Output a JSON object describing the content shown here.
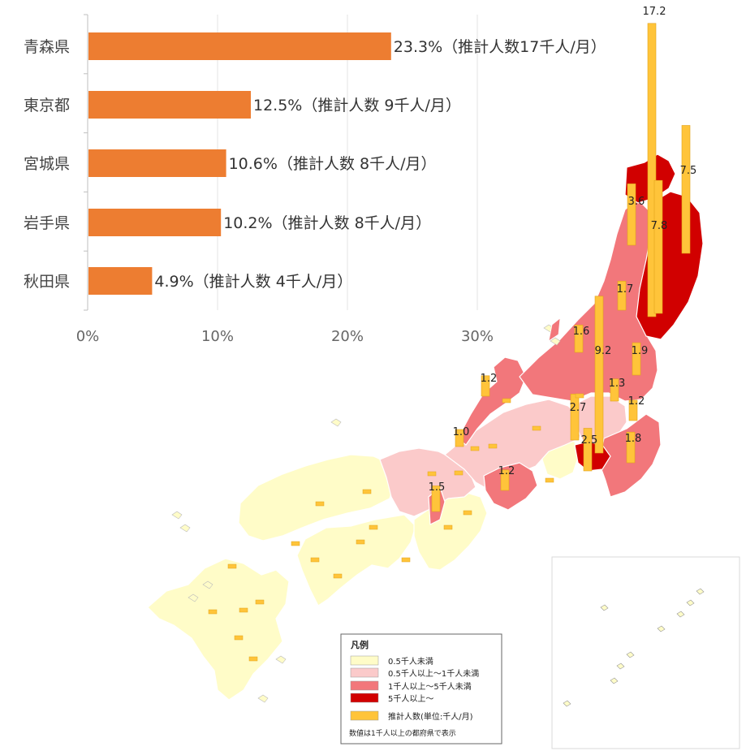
{
  "chart_data": [
    {
      "type": "bar",
      "orientation": "horizontal",
      "categories": [
        "青森県",
        "東京都",
        "宮城県",
        "岩手県",
        "秋田県"
      ],
      "values": [
        23.3,
        12.5,
        10.6,
        10.2,
        4.9
      ],
      "data_labels": [
        "23.3%（推計人数17千人/月）",
        "12.5%（推計人数 9千人/月）",
        "10.6%（推計人数 8千人/月）",
        "10.2%（推計人数 8千人/月）",
        "4.9%（推計人数 4千人/月）"
      ],
      "xlim": [
        0,
        30
      ],
      "x_ticks": [
        "0%",
        "10%",
        "20%",
        "30%"
      ],
      "x_tick_values": [
        0,
        10,
        20,
        30
      ],
      "bar_color": "#ed7d31",
      "grid": true
    },
    {
      "type": "map",
      "value_labels": [
        "17.2",
        "7.5",
        "3.6",
        "7.8",
        "1.7",
        "1.6",
        "9.2",
        "1.9",
        "1.3",
        "1.2",
        "1.2",
        "2.7",
        "1.0",
        "2.5",
        "1.8",
        "1.2",
        "1.5"
      ],
      "values": [
        17.2,
        7.5,
        3.6,
        7.8,
        1.7,
        1.6,
        9.2,
        1.9,
        1.3,
        1.2,
        1.2,
        2.7,
        1.0,
        2.5,
        1.8,
        1.2,
        1.5
      ],
      "legend": {
        "title": "凡例",
        "items": [
          {
            "label": "0.5千人未満",
            "color": "#fffcc8"
          },
          {
            "label": "0.5千人以上～1千人未満",
            "color": "#fbcaca"
          },
          {
            "label": " 1千人以上～5千人未満",
            "color": "#f2777b"
          },
          {
            "label": "5千人以上～",
            "color": "#d10000"
          },
          {
            "label": "推計人数(単位:千人/月)",
            "color": "#ffc43a"
          }
        ],
        "note": "数値は1千人以上の都府県で表示"
      },
      "colors": {
        "lt05": "#fffcc8",
        "05to1": "#fbcaca",
        "1to5": "#f2777b",
        "ge5": "#d10000",
        "bar": "#ffc43a",
        "bar_border": "#e0a21c"
      }
    }
  ]
}
